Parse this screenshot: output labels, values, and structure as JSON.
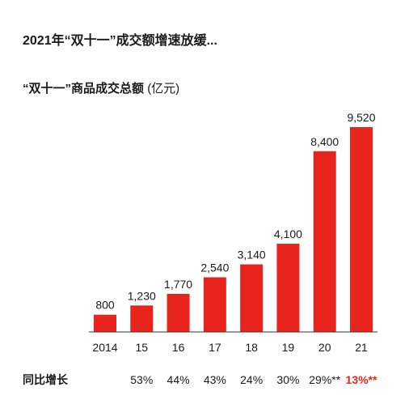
{
  "colors": {
    "bar": "#e8241c",
    "axis": "#333333",
    "highlight": "#e8241c",
    "text": "#1a1a1a"
  },
  "chart_data": {
    "type": "bar",
    "title": "2021年“双十一”成交额增速放缓...",
    "subtitle": "“双十一”商品成交总额",
    "unit": "(亿元)",
    "categories": [
      "2014",
      "15",
      "16",
      "17",
      "18",
      "19",
      "20",
      "21"
    ],
    "values": [
      800,
      1230,
      1770,
      2540,
      3140,
      4100,
      8400,
      9520
    ],
    "value_labels": [
      "800",
      "1,230",
      "1,770",
      "2,540",
      "3,140",
      "4,100",
      "8,400",
      "9,520"
    ],
    "growth_row_label": "同比增长",
    "growth": [
      "",
      "53%",
      "44%",
      "43%",
      "24%",
      "30%",
      "29%**",
      "13%**"
    ],
    "growth_highlight_index": 7,
    "grid": false
  }
}
